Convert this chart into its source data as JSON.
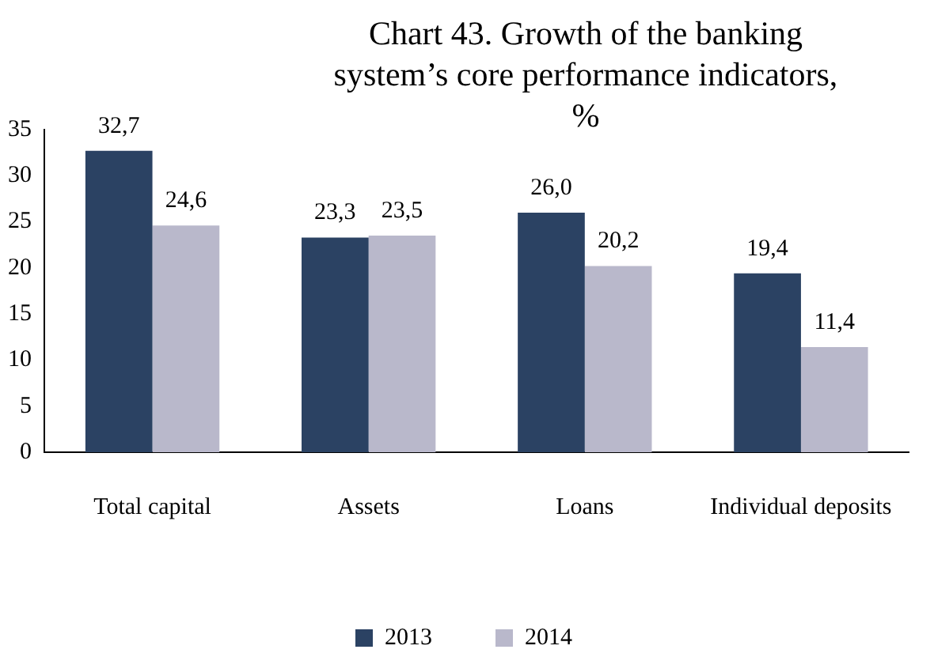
{
  "chart_data": {
    "type": "bar",
    "title": "Chart 43. Growth of the banking system’s core performance indicators, %",
    "categories": [
      "Total capital",
      "Assets",
      "Loans",
      "Individual deposits"
    ],
    "series": [
      {
        "name": "2013",
        "color": "#2b4263",
        "values": [
          32.7,
          23.3,
          26.0,
          19.4
        ],
        "value_labels": [
          "32,7",
          "23,3",
          "26,0",
          "19,4"
        ]
      },
      {
        "name": "2014",
        "color": "#b9b8cb",
        "values": [
          24.6,
          23.5,
          20.2,
          11.4
        ],
        "value_labels": [
          "24,6",
          "23,5",
          "20,2",
          "11,4"
        ]
      }
    ],
    "ylim": [
      0,
      35
    ],
    "yticks": [
      0,
      5,
      10,
      15,
      20,
      25,
      30,
      35
    ],
    "grid": false,
    "legend": "bottom"
  }
}
